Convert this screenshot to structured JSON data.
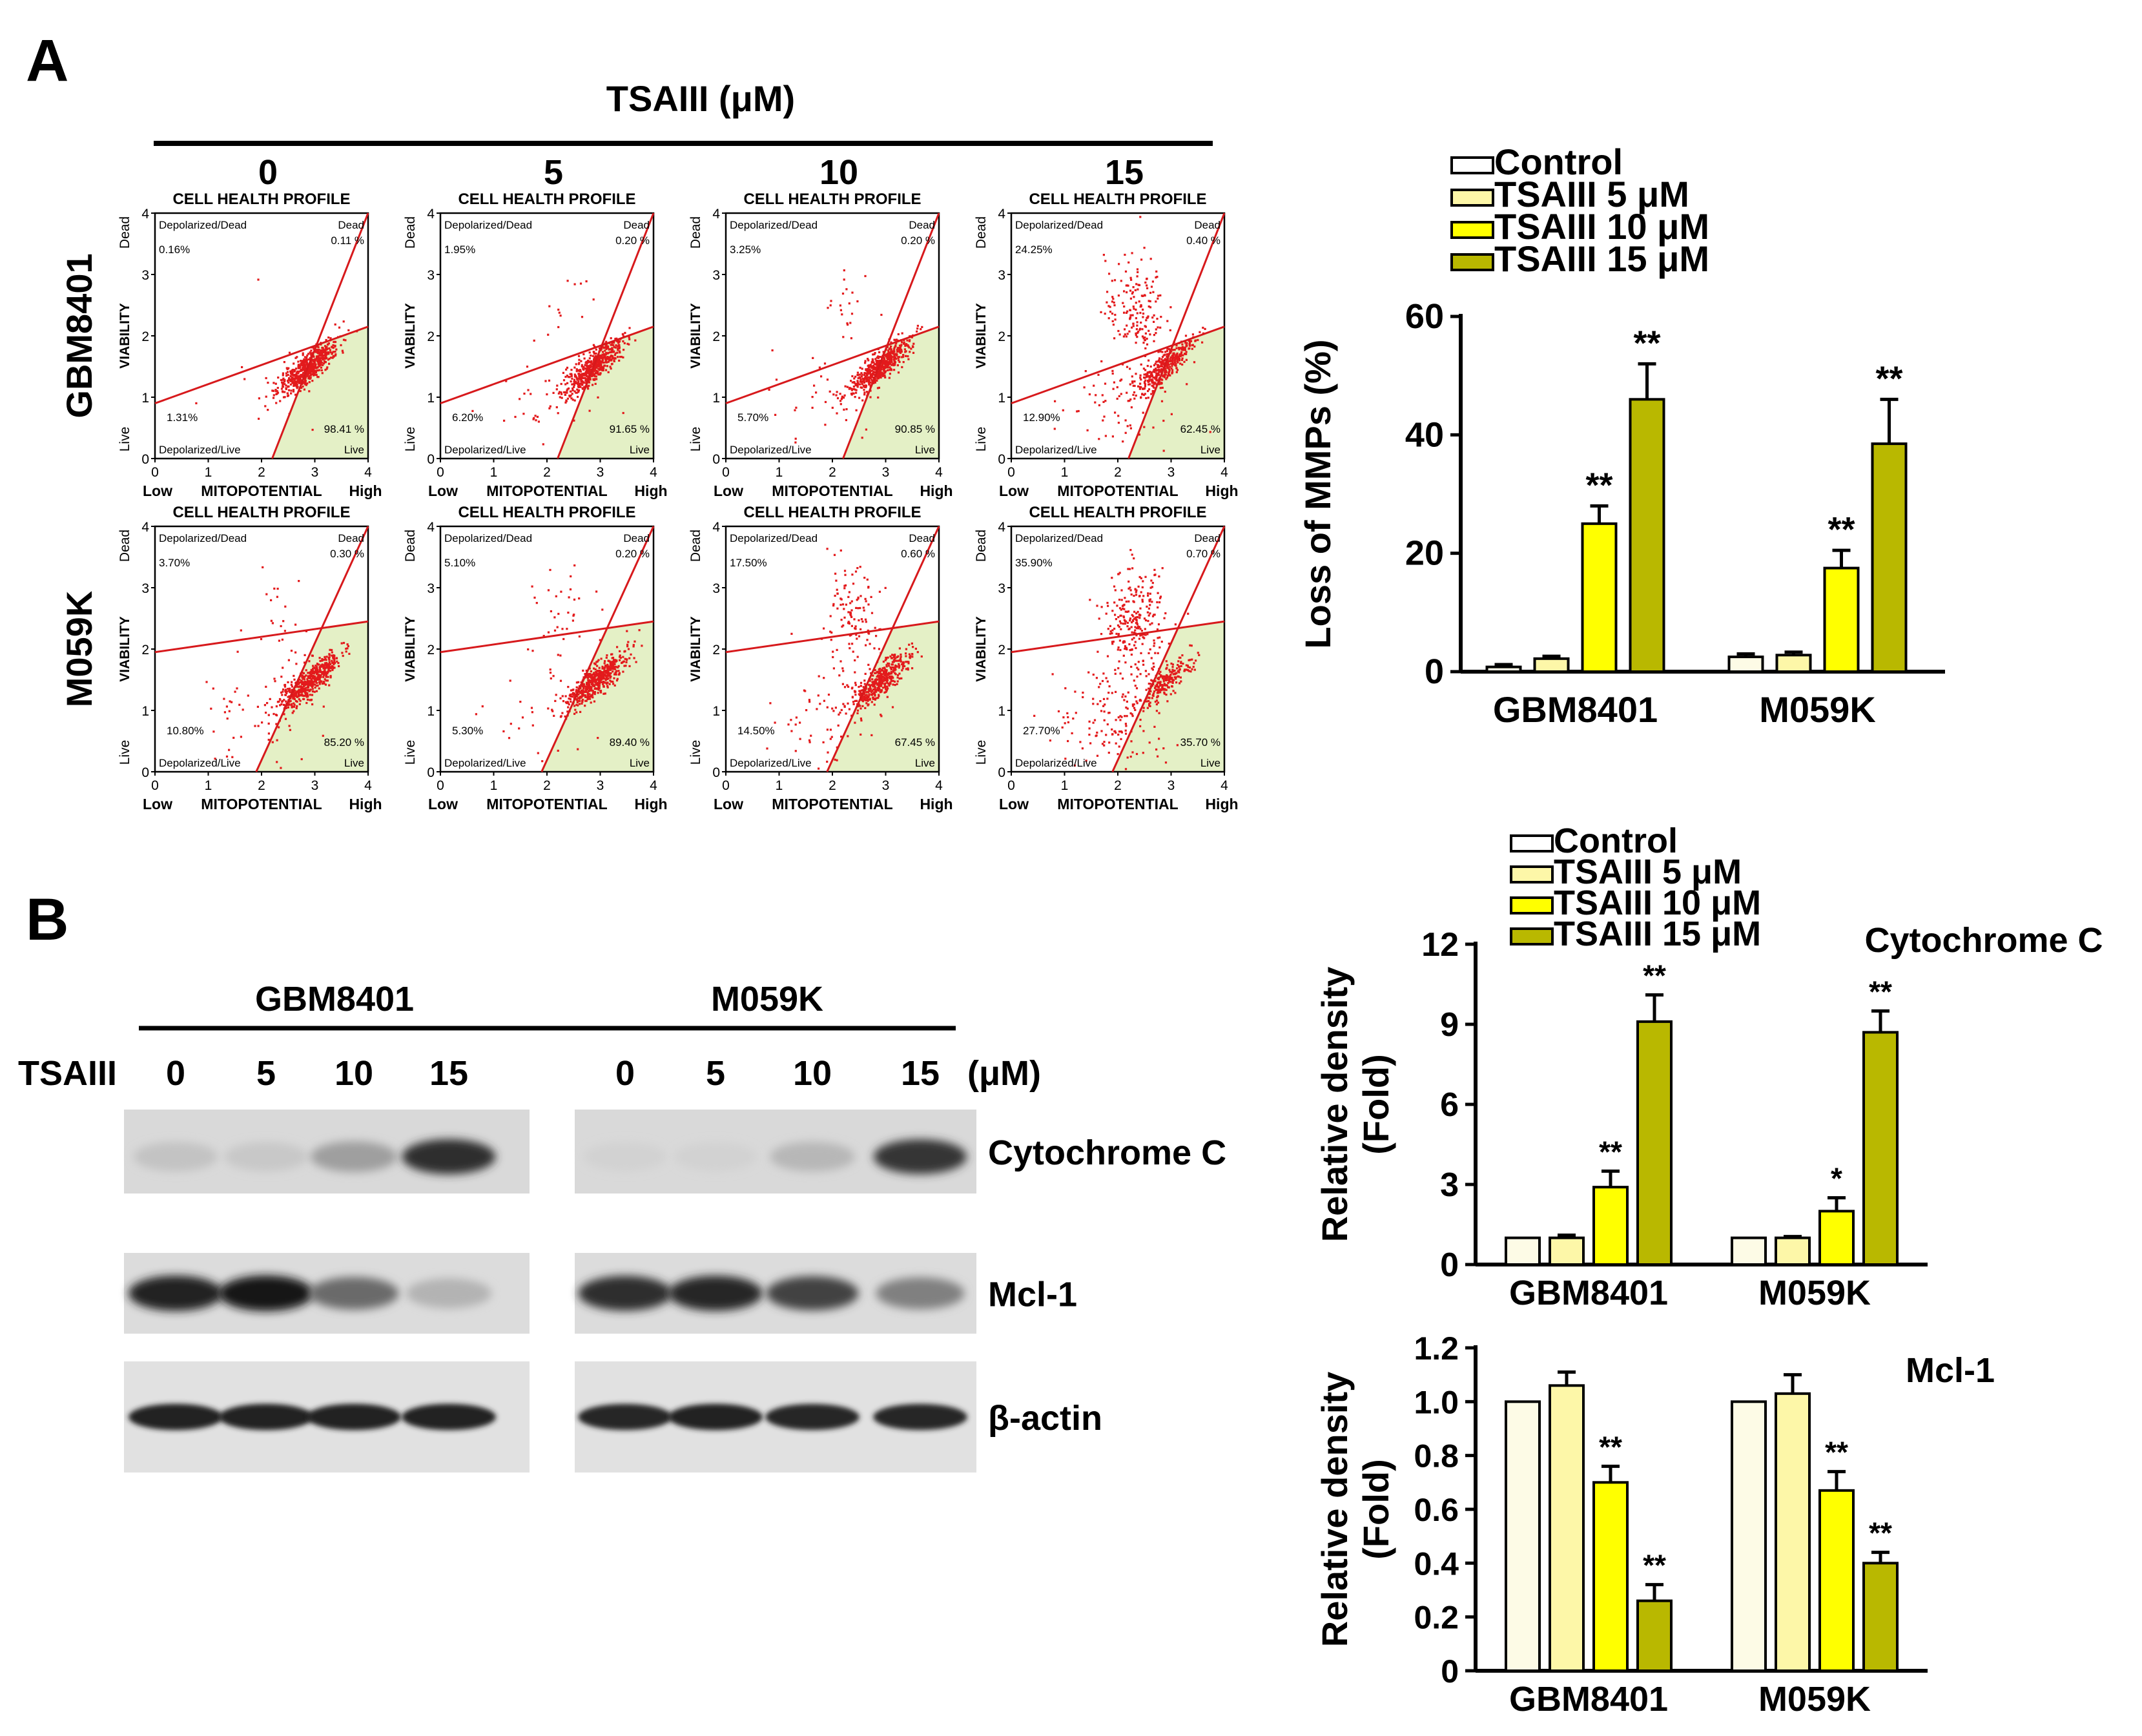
{
  "figure": {
    "panel_a_label": "A",
    "panel_b_label": "B",
    "treatment_title": "TSAIII (μM)",
    "doses": [
      "0",
      "5",
      "10",
      "15"
    ],
    "cell_lines": [
      "GBM8401",
      "M059K"
    ]
  },
  "flow": {
    "title": "CELL HEALTH PROFILE",
    "y_axis_label": "VIABILITY",
    "y_low": "Live",
    "y_high": "Dead",
    "x_axis_label": "MITOPOTENTIAL",
    "x_low": "Low",
    "x_high": "High",
    "ticks": [
      "0",
      "1",
      "2",
      "3",
      "4"
    ],
    "quadrant_labels": {
      "depol_dead": "Depolarized/Dead",
      "dead": "Dead",
      "depol_live": "Depolarized/Live",
      "live": "Live"
    },
    "colors": {
      "dots": "#e31a1c",
      "gate_line": "#d7191c",
      "live_region": "#e4f0c6"
    },
    "plots": [
      {
        "row": 0,
        "col": 0,
        "depol_dead": "0.16%",
        "dead": "0.11 %",
        "depol_live": "1.31%",
        "live": "98.41 %"
      },
      {
        "row": 0,
        "col": 1,
        "depol_dead": "1.95%",
        "dead": "0.20 %",
        "depol_live": "6.20%",
        "live": "91.65 %"
      },
      {
        "row": 0,
        "col": 2,
        "depol_dead": "3.25%",
        "dead": "0.20 %",
        "depol_live": "5.70%",
        "live": "90.85 %"
      },
      {
        "row": 0,
        "col": 3,
        "depol_dead": "24.25%",
        "dead": "0.40 %",
        "depol_live": "12.90%",
        "live": "62.45 %"
      },
      {
        "row": 1,
        "col": 0,
        "depol_dead": "3.70%",
        "dead": "0.30 %",
        "depol_live": "10.80%",
        "live": "85.20 %"
      },
      {
        "row": 1,
        "col": 1,
        "depol_dead": "5.10%",
        "dead": "0.20 %",
        "depol_live": "5.30%",
        "live": "89.40 %"
      },
      {
        "row": 1,
        "col": 2,
        "depol_dead": "17.50%",
        "dead": "0.60 %",
        "depol_live": "14.50%",
        "live": "67.45 %"
      },
      {
        "row": 1,
        "col": 3,
        "depol_dead": "35.90%",
        "dead": "0.70 %",
        "depol_live": "27.70%",
        "live": "35.70 %"
      }
    ]
  },
  "western": {
    "treatment_label": "TSAIII",
    "unit_label": "(μM)",
    "proteins": [
      "Cytochrome C",
      "Mcl-1",
      "β-actin"
    ],
    "band_intensity": {
      "Cytochrome C": [
        [
          0.12,
          0.1,
          0.3,
          0.85
        ],
        [
          0.05,
          0.05,
          0.18,
          0.82
        ]
      ],
      "Mcl-1": [
        [
          0.9,
          0.95,
          0.55,
          0.2
        ],
        [
          0.85,
          0.88,
          0.75,
          0.45
        ]
      ],
      "β-actin": [
        [
          0.9,
          0.9,
          0.9,
          0.9
        ],
        [
          0.88,
          0.9,
          0.88,
          0.88
        ]
      ]
    }
  },
  "legend": {
    "entries": [
      "Control",
      "TSAIII   5 μM",
      "TSAIII 10 μM",
      "TSAIII 15 μM"
    ],
    "colors": [
      "#ffffff",
      "#fdf7a8",
      "#ffff00",
      "#b9b800"
    ]
  },
  "chart_data": [
    {
      "type": "bar",
      "title": "",
      "ylabel": "Loss of MMPs (%)",
      "categories": [
        "GBM8401",
        "M059K"
      ],
      "ylim": [
        0,
        60
      ],
      "yticks": [
        "0",
        "20",
        "40",
        "60"
      ],
      "series": [
        {
          "name": "Control",
          "values": [
            0.8,
            2.5
          ],
          "errors": [
            0.4,
            0.5
          ],
          "sig": [
            "",
            ""
          ]
        },
        {
          "name": "TSAIII 5 μM",
          "values": [
            2.2,
            2.8
          ],
          "errors": [
            0.4,
            0.5
          ],
          "sig": [
            "",
            ""
          ]
        },
        {
          "name": "TSAIII 10 μM",
          "values": [
            25,
            17.5
          ],
          "errors": [
            3,
            3
          ],
          "sig": [
            "**",
            "**"
          ]
        },
        {
          "name": "TSAIII 15 μM",
          "values": [
            46,
            38.5
          ],
          "errors": [
            6,
            7.5
          ],
          "sig": [
            "**",
            "**"
          ]
        }
      ]
    },
    {
      "type": "bar",
      "title": "Cytochrome C",
      "ylabel": "Relative density (Fold)",
      "categories": [
        "GBM8401",
        "M059K"
      ],
      "ylim": [
        0,
        12
      ],
      "yticks": [
        "0",
        "3",
        "6",
        "9",
        "12"
      ],
      "series": [
        {
          "name": "Control",
          "values": [
            1.0,
            1.0
          ],
          "errors": [
            0,
            0
          ],
          "sig": [
            "",
            ""
          ]
        },
        {
          "name": "TSAIII 5 μM",
          "values": [
            1.0,
            1.0
          ],
          "errors": [
            0.1,
            0.05
          ],
          "sig": [
            "",
            ""
          ]
        },
        {
          "name": "TSAIII 10 μM",
          "values": [
            2.9,
            2.0
          ],
          "errors": [
            0.6,
            0.5
          ],
          "sig": [
            "**",
            "*"
          ]
        },
        {
          "name": "TSAIII 15 μM",
          "values": [
            9.1,
            8.7
          ],
          "errors": [
            1.0,
            0.8
          ],
          "sig": [
            "**",
            "**"
          ]
        }
      ]
    },
    {
      "type": "bar",
      "title": "Mcl-1",
      "ylabel": "Relative density (Fold)",
      "categories": [
        "GBM8401",
        "M059K"
      ],
      "ylim": [
        0,
        1.2
      ],
      "yticks": [
        "0",
        "0.2",
        "0.4",
        "0.6",
        "0.8",
        "1.0",
        "1.2"
      ],
      "series": [
        {
          "name": "Control",
          "values": [
            1.0,
            1.0
          ],
          "errors": [
            0,
            0
          ],
          "sig": [
            "",
            ""
          ]
        },
        {
          "name": "TSAIII 5 μM",
          "values": [
            1.06,
            1.03
          ],
          "errors": [
            0.05,
            0.07
          ],
          "sig": [
            "",
            ""
          ]
        },
        {
          "name": "TSAIII 10 μM",
          "values": [
            0.7,
            0.67
          ],
          "errors": [
            0.06,
            0.07
          ],
          "sig": [
            "**",
            "**"
          ]
        },
        {
          "name": "TSAIII 15 μM",
          "values": [
            0.26,
            0.4
          ],
          "errors": [
            0.06,
            0.04
          ],
          "sig": [
            "**",
            "**"
          ]
        }
      ]
    }
  ]
}
